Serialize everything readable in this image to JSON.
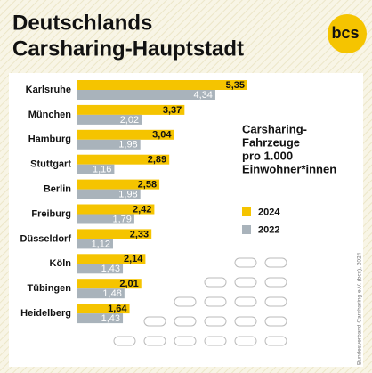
{
  "chart_data": {
    "type": "hbar",
    "title": [
      "Deutschlands",
      "Carsharing-Hauptstadt"
    ],
    "logo": "bcs",
    "subtitle": [
      "Carsharing-",
      "Fahrzeuge",
      "pro 1.000",
      "Einwohner*innen"
    ],
    "source": "Bundesverband Carsharing e.V. (bcs), 2024",
    "categories": [
      "Karlsruhe",
      "München",
      "Hamburg",
      "Stuttgart",
      "Berlin",
      "Freiburg",
      "Düsseldorf",
      "Köln",
      "Tübingen",
      "Heidelberg"
    ],
    "series": [
      {
        "name": "2024",
        "color": "#f5c400",
        "values": [
          5.35,
          3.37,
          3.04,
          2.89,
          2.58,
          2.42,
          2.33,
          2.14,
          2.01,
          1.64
        ],
        "value_labels": [
          "5,35",
          "3,37",
          "3,04",
          "2,89",
          "2,58",
          "2,42",
          "2,33",
          "2,14",
          "2,01",
          "1,64"
        ]
      },
      {
        "name": "2022",
        "color": "#a9b3bb",
        "values": [
          4.34,
          2.02,
          1.98,
          1.16,
          1.98,
          1.79,
          1.12,
          1.43,
          1.48,
          1.43
        ],
        "value_labels": [
          "4,34",
          "2,02",
          "1,98",
          "1,16",
          "1,98",
          "1,79",
          "1,12",
          "1,43",
          "1,48",
          "1,43"
        ]
      }
    ]
  }
}
